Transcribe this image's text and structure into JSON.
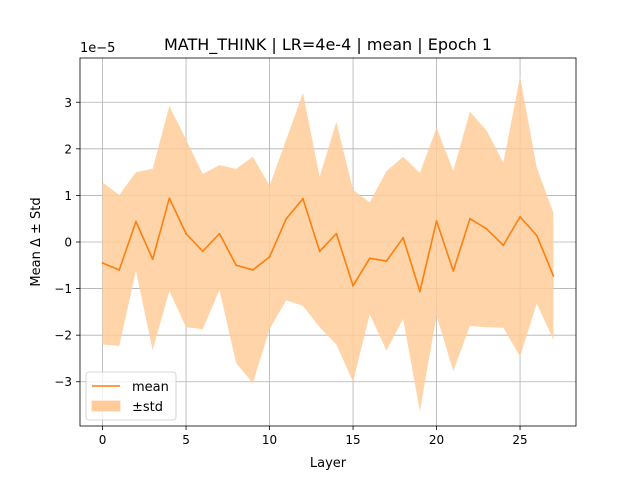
{
  "chart_data": {
    "type": "line",
    "title": "MATH_THINK | LR=4e-4 | mean | Epoch 1",
    "xlabel": "Layer",
    "ylabel": "Mean Δ ± Std",
    "y_offset_label": "1e−5",
    "y_scale": 1e-05,
    "xlim": [
      -1.35,
      28.35
    ],
    "ylim": [
      -3.95,
      3.95
    ],
    "x_ticks": [
      0,
      5,
      10,
      15,
      20,
      25
    ],
    "x_tick_labels": [
      "0",
      "5",
      "10",
      "15",
      "20",
      "25"
    ],
    "y_ticks": [
      -3,
      -2,
      -1,
      0,
      1,
      2,
      3
    ],
    "y_tick_labels": [
      "−3",
      "−2",
      "−1",
      "0",
      "1",
      "2",
      "3"
    ],
    "grid": true,
    "legend_position": "lower-left",
    "x": [
      0,
      1,
      2,
      3,
      4,
      5,
      6,
      7,
      8,
      9,
      10,
      11,
      12,
      13,
      14,
      15,
      16,
      17,
      18,
      19,
      20,
      21,
      22,
      23,
      24,
      25,
      26,
      27
    ],
    "series": [
      {
        "name": "mean",
        "color": "#ff7f0e",
        "values": [
          -0.45,
          -0.6,
          0.44,
          -0.37,
          0.94,
          0.18,
          -0.2,
          0.18,
          -0.5,
          -0.6,
          -0.32,
          0.5,
          0.93,
          -0.2,
          0.18,
          -0.94,
          -0.35,
          -0.41,
          0.09,
          -1.06,
          0.45,
          -0.62,
          0.5,
          0.28,
          -0.07,
          0.54,
          0.14,
          -0.73
        ]
      },
      {
        "name": "±std",
        "type": "band",
        "color": "#ffcc99",
        "upper": [
          1.28,
          1.01,
          1.5,
          1.57,
          2.92,
          2.2,
          1.46,
          1.65,
          1.57,
          1.83,
          1.21,
          2.2,
          3.2,
          1.4,
          2.58,
          1.12,
          0.85,
          1.52,
          1.83,
          1.48,
          2.45,
          1.53,
          2.8,
          2.39,
          1.7,
          3.55,
          1.6,
          0.62
        ],
        "lower": [
          -2.2,
          -2.23,
          -0.62,
          -2.32,
          -1.05,
          -1.83,
          -1.87,
          -1.03,
          -2.6,
          -3.03,
          -1.87,
          -1.25,
          -1.37,
          -1.83,
          -2.2,
          -3.0,
          -1.55,
          -2.33,
          -1.65,
          -3.63,
          -1.58,
          -2.77,
          -1.8,
          -1.83,
          -1.84,
          -2.46,
          -1.32,
          -2.1
        ]
      }
    ]
  }
}
